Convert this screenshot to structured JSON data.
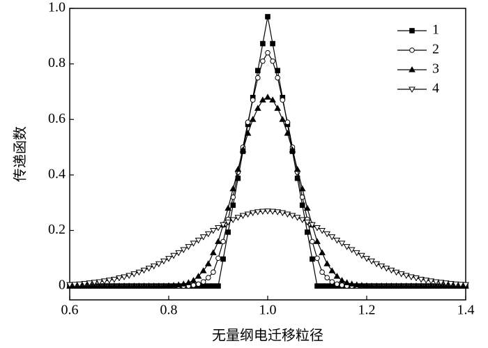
{
  "chart_data": {
    "type": "line",
    "xlabel": "无量纲电迁移粒径",
    "ylabel": "传递函数",
    "xlim": [
      0.6,
      1.4
    ],
    "ylim": [
      -0.05,
      1.0
    ],
    "xticks": [
      0.6,
      0.8,
      {
        "value": 1,
        "label": "1.0"
      },
      1.2,
      1.4
    ],
    "yticks": [
      0,
      0.2,
      0.4,
      0.6,
      0.8,
      {
        "value": 1,
        "label": "1.0"
      }
    ],
    "legend": "upper right",
    "x": [
      0.6,
      0.61,
      0.62,
      0.63,
      0.64,
      0.65,
      0.66,
      0.67,
      0.68,
      0.69,
      0.7,
      0.71,
      0.72,
      0.73,
      0.74,
      0.75,
      0.76,
      0.77,
      0.78,
      0.79,
      0.8,
      0.81,
      0.82,
      0.83,
      0.84,
      0.85,
      0.86,
      0.87,
      0.88,
      0.89,
      0.9,
      0.91,
      0.92,
      0.93,
      0.94,
      0.95,
      0.96,
      0.97,
      0.98,
      0.99,
      1.0,
      1.01,
      1.02,
      1.03,
      1.04,
      1.05,
      1.06,
      1.07,
      1.08,
      1.09,
      1.1,
      1.11,
      1.12,
      1.13,
      1.14,
      1.15,
      1.16,
      1.17,
      1.18,
      1.19,
      1.2,
      1.21,
      1.22,
      1.23,
      1.24,
      1.25,
      1.26,
      1.27,
      1.28,
      1.29,
      1.3,
      1.31,
      1.32,
      1.33,
      1.34,
      1.35,
      1.36,
      1.37,
      1.38,
      1.39,
      1.4
    ],
    "series": [
      {
        "name": "1",
        "color": "#000000",
        "marker": "square-filled",
        "values": [
          0,
          0,
          0,
          0,
          0,
          0,
          0,
          0,
          0,
          0,
          0,
          0,
          0,
          0,
          0,
          0,
          0,
          0,
          0,
          0,
          0,
          0,
          0,
          0,
          0,
          0,
          0,
          0,
          0,
          0,
          0,
          0.097,
          0.194,
          0.291,
          0.388,
          0.485,
          0.582,
          0.679,
          0.776,
          0.873,
          0.97,
          0.873,
          0.776,
          0.679,
          0.582,
          0.485,
          0.388,
          0.291,
          0.194,
          0.097,
          0,
          0,
          0,
          0,
          0,
          0,
          0,
          0,
          0,
          0,
          0,
          0,
          0,
          0,
          0,
          0,
          0,
          0,
          0,
          0,
          0,
          0,
          0,
          0,
          0,
          0,
          0,
          0,
          0,
          0,
          0
        ]
      },
      {
        "name": "2",
        "color": "#000000",
        "marker": "circle-open",
        "values": [
          0,
          0,
          0,
          0,
          0,
          0,
          0,
          0,
          0,
          0,
          0,
          0,
          0,
          0,
          0,
          0,
          0,
          0,
          0,
          0,
          0,
          0,
          0,
          0,
          0,
          0.003,
          0.007,
          0.015,
          0.03,
          0.05,
          0.1,
          0.16,
          0.24,
          0.32,
          0.41,
          0.5,
          0.59,
          0.67,
          0.75,
          0.81,
          0.84,
          0.81,
          0.75,
          0.67,
          0.59,
          0.5,
          0.41,
          0.32,
          0.24,
          0.16,
          0.1,
          0.05,
          0.03,
          0.015,
          0.007,
          0.003,
          0,
          0,
          0,
          0,
          0,
          0,
          0,
          0,
          0,
          0,
          0,
          0,
          0,
          0,
          0,
          0,
          0,
          0,
          0,
          0,
          0,
          0,
          0,
          0,
          0
        ]
      },
      {
        "name": "3",
        "color": "#000000",
        "marker": "triangle-up-filled",
        "values": [
          0,
          0,
          0,
          0,
          0,
          0,
          0,
          0,
          0,
          0,
          0,
          0,
          0,
          0,
          0,
          0,
          0,
          0,
          0,
          0,
          0.001,
          0.002,
          0.004,
          0.007,
          0.012,
          0.02,
          0.035,
          0.055,
          0.08,
          0.12,
          0.16,
          0.22,
          0.28,
          0.35,
          0.42,
          0.49,
          0.55,
          0.6,
          0.64,
          0.67,
          0.68,
          0.67,
          0.64,
          0.6,
          0.55,
          0.49,
          0.42,
          0.35,
          0.28,
          0.22,
          0.16,
          0.12,
          0.08,
          0.055,
          0.035,
          0.02,
          0.012,
          0.007,
          0.004,
          0.002,
          0.001,
          0,
          0,
          0,
          0,
          0,
          0,
          0,
          0,
          0,
          0,
          0,
          0,
          0,
          0,
          0,
          0,
          0,
          0,
          0,
          0
        ]
      },
      {
        "name": "4",
        "color": "#000000",
        "marker": "triangle-down-open",
        "values": [
          0.005,
          0.006,
          0.007,
          0.009,
          0.011,
          0.013,
          0.015,
          0.018,
          0.021,
          0.024,
          0.029,
          0.033,
          0.038,
          0.044,
          0.05,
          0.057,
          0.064,
          0.072,
          0.08,
          0.09,
          0.099,
          0.11,
          0.12,
          0.131,
          0.142,
          0.154,
          0.165,
          0.177,
          0.188,
          0.2,
          0.21,
          0.221,
          0.23,
          0.239,
          0.247,
          0.254,
          0.259,
          0.264,
          0.267,
          0.269,
          0.27,
          0.269,
          0.267,
          0.264,
          0.259,
          0.254,
          0.247,
          0.239,
          0.23,
          0.221,
          0.21,
          0.2,
          0.188,
          0.177,
          0.165,
          0.154,
          0.142,
          0.131,
          0.12,
          0.11,
          0.099,
          0.09,
          0.08,
          0.072,
          0.064,
          0.057,
          0.05,
          0.044,
          0.038,
          0.033,
          0.029,
          0.024,
          0.021,
          0.018,
          0.015,
          0.013,
          0.011,
          0.009,
          0.007,
          0.006,
          0.005
        ]
      }
    ]
  }
}
